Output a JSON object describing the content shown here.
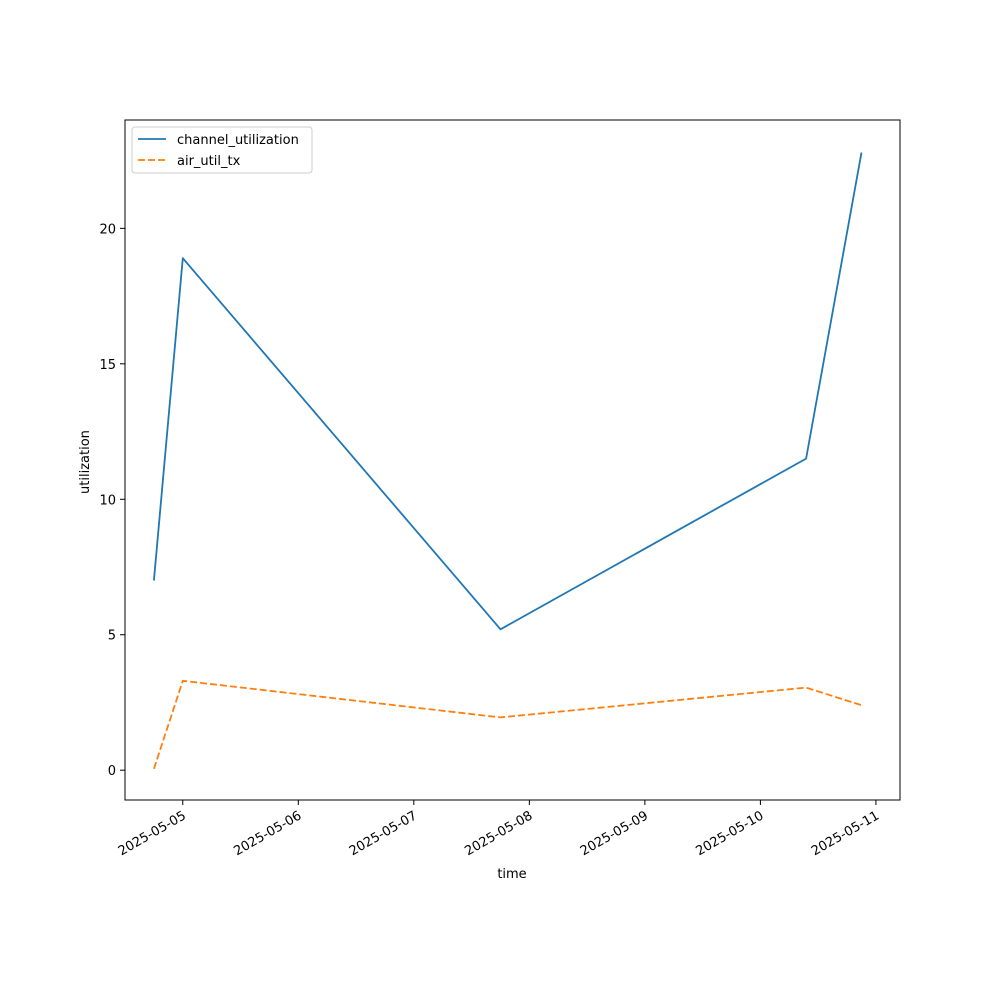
{
  "chart_data": {
    "type": "line",
    "title": "",
    "xlabel": "time",
    "ylabel": "utilization",
    "x": [
      "2025-05-04T18:00",
      "2025-05-05T00:00",
      "2025-05-07T18:00",
      "2025-05-10T09:30",
      "2025-05-10T21:00"
    ],
    "xlim": [
      "2025-05-04T12:00",
      "2025-05-11T05:00"
    ],
    "ylim": [
      -1.1,
      24
    ],
    "x_ticks": [
      "2025-05-05",
      "2025-05-06",
      "2025-05-07",
      "2025-05-08",
      "2025-05-09",
      "2025-05-10",
      "2025-05-11"
    ],
    "y_ticks": [
      0,
      5,
      10,
      15,
      20
    ],
    "grid": false,
    "legend_position": "top-left",
    "series": [
      {
        "name": "channel_utilization",
        "color": "#1f77b4",
        "style": "solid",
        "values": [
          7.0,
          18.9,
          5.2,
          11.5,
          22.8
        ]
      },
      {
        "name": "air_util_tx",
        "color": "#ff7f0e",
        "style": "dashed",
        "values": [
          0.05,
          3.3,
          1.95,
          3.05,
          2.4
        ]
      }
    ]
  }
}
